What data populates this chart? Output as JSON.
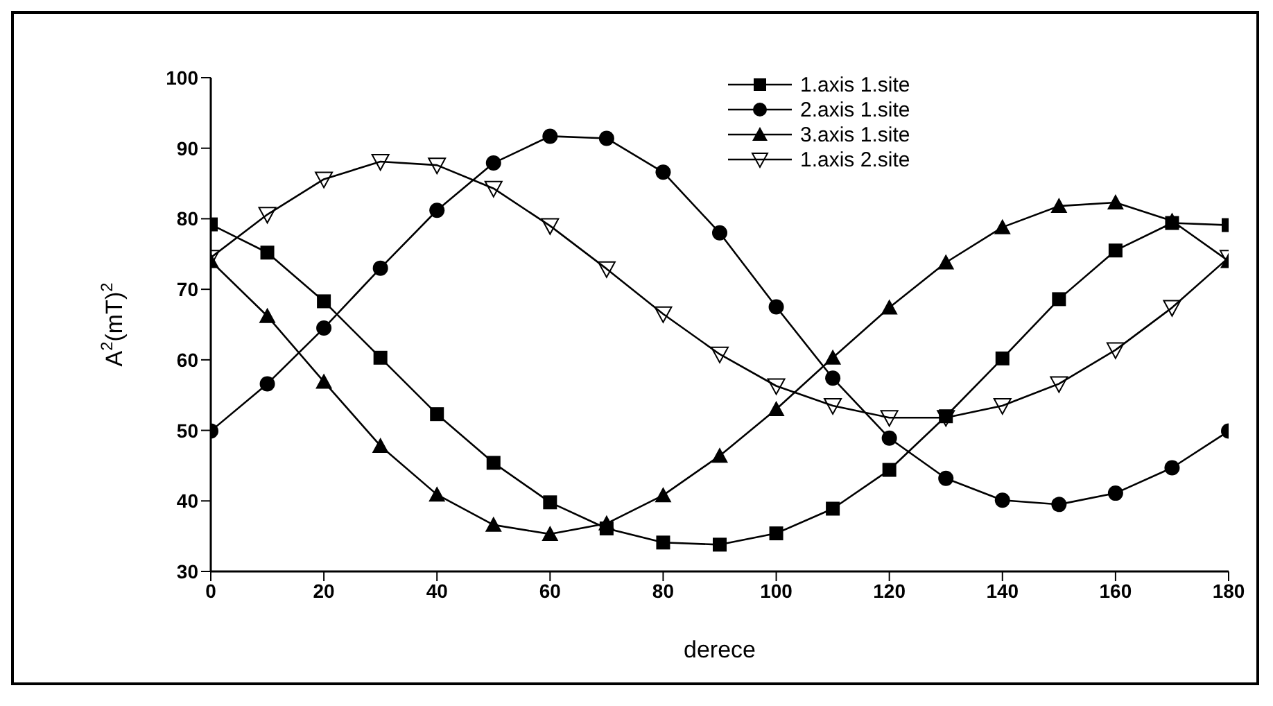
{
  "chart_data": {
    "type": "line",
    "xlabel": "derece",
    "ylabel": "A$^{2}$(mT)$^{2}$",
    "x": [
      0,
      10,
      20,
      30,
      40,
      50,
      60,
      70,
      80,
      90,
      100,
      110,
      120,
      130,
      140,
      150,
      160,
      170,
      180
    ],
    "xlim": [
      0,
      180
    ],
    "xticks": [
      0,
      20,
      40,
      60,
      80,
      100,
      120,
      140,
      160,
      180
    ],
    "ylim": [
      30,
      100
    ],
    "yticks": [
      30,
      40,
      50,
      60,
      70,
      80,
      90,
      100
    ],
    "grid": false,
    "legend": "top right",
    "line_style": "solid",
    "series": [
      {
        "name": "1.axis 1.site",
        "color": "#000000",
        "marker": "square",
        "values": [
          79.2,
          75.2,
          68.3,
          60.3,
          52.3,
          45.4,
          39.8,
          36.1,
          34.1,
          33.8,
          35.4,
          38.9,
          44.4,
          52,
          60.2,
          68.6,
          75.5,
          79.4,
          79.1
        ]
      },
      {
        "name": "2.axis 1.site",
        "color": "#000000",
        "marker": "circle",
        "values": [
          49.9,
          56.6,
          64.5,
          73,
          81.2,
          87.9,
          91.7,
          91.4,
          86.6,
          78,
          67.5,
          57.4,
          48.9,
          43.2,
          40.1,
          39.5,
          41.1,
          44.7,
          49.9
        ]
      },
      {
        "name": "3.axis 1.site",
        "color": "#000000",
        "marker": "triangle",
        "values": [
          74,
          66.2,
          56.9,
          47.8,
          40.9,
          36.6,
          35.3,
          36.8,
          40.8,
          46.4,
          53,
          60.3,
          67.4,
          73.8,
          78.8,
          81.8,
          82.3,
          79.7,
          74
        ]
      },
      {
        "name": "1.axis 2.site",
        "color": "#000000",
        "marker": "triangle-down",
        "values": [
          74.5,
          80.6,
          85.6,
          88.1,
          87.6,
          84.3,
          79,
          72.9,
          66.5,
          60.8,
          56.3,
          53.5,
          51.8,
          51.8,
          53.5,
          56.6,
          61.4,
          67.4,
          74.5
        ]
      }
    ]
  }
}
